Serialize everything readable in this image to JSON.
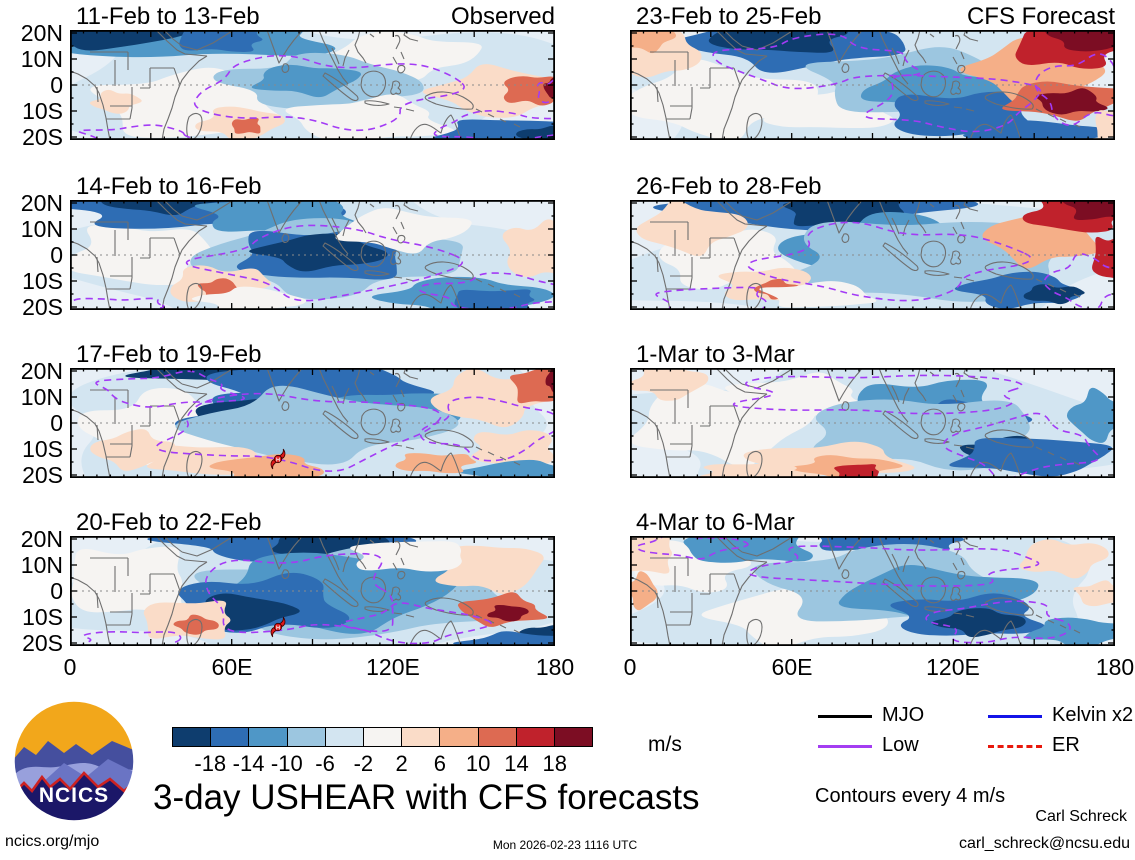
{
  "chart_data": {
    "type": "heatmap",
    "title": "3-day USHEAR with CFS forecasts",
    "contour_note": "Contours every 4 m/s",
    "columns": [
      "Observed",
      "CFS Forecast"
    ],
    "panels": [
      {
        "title": "11-Feb to 13-Feb",
        "column": "Observed",
        "cyclone_symbol": false
      },
      {
        "title": "14-Feb to 16-Feb",
        "column": "Observed",
        "cyclone_symbol": false
      },
      {
        "title": "17-Feb to 19-Feb",
        "column": "Observed",
        "cyclone_symbol": true
      },
      {
        "title": "20-Feb to 22-Feb",
        "column": "Observed",
        "cyclone_symbol": true
      },
      {
        "title": "23-Feb to 25-Feb",
        "column": "CFS Forecast",
        "cyclone_symbol": false
      },
      {
        "title": "26-Feb to 28-Feb",
        "column": "CFS Forecast",
        "cyclone_symbol": false
      },
      {
        "title": "1-Mar to 3-Mar",
        "column": "CFS Forecast",
        "cyclone_symbol": false
      },
      {
        "title": "4-Mar to 6-Mar",
        "column": "CFS Forecast",
        "cyclone_symbol": false
      }
    ],
    "x_axis": {
      "ticks": [
        "0",
        "60E",
        "120E",
        "180"
      ]
    },
    "y_axis": {
      "ticks": [
        "20N",
        "10N",
        "0",
        "10S",
        "20S"
      ]
    },
    "colorbar": {
      "ticks": [
        "-18",
        "-14",
        "-10",
        "-6",
        "-2",
        "2",
        "6",
        "10",
        "14",
        "18"
      ],
      "colors": [
        "#0e3d6e",
        "#2e6db4",
        "#4f97c7",
        "#9cc6e0",
        "#d3e5f1",
        "#f6f4f2",
        "#fadcc8",
        "#f5af88",
        "#dd6a52",
        "#c0222c",
        "#7c0d23"
      ],
      "units_label": "m/s",
      "contour_interval_mps": 4
    },
    "legend": [
      {
        "label": "MJO",
        "color": "#000000",
        "style": "solid"
      },
      {
        "label": "Kelvin x2",
        "color": "#1414e8",
        "style": "solid"
      },
      {
        "label": "Low",
        "color": "#a43df2",
        "style": "solid"
      },
      {
        "label": "ER",
        "color": "#e8180c",
        "style": "dashed"
      }
    ],
    "overlay_contour_color": "#a33bf5"
  },
  "logo": {
    "text": "NCICS"
  },
  "footer": {
    "site": "ncics.org/mjo",
    "timestamp": "Mon 2026-02-23 1116 UTC",
    "author": "Carl Schreck",
    "email": "carl_schreck@ncsu.edu"
  }
}
